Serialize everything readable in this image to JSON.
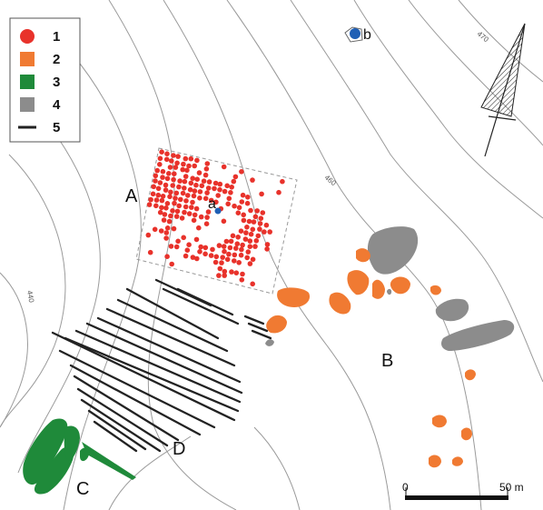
{
  "legend": {
    "items": [
      {
        "key": "1",
        "symbol": "circle",
        "color": "#e8322b"
      },
      {
        "key": "2",
        "symbol": "square",
        "color": "#f07a32"
      },
      {
        "key": "3",
        "symbol": "square",
        "color": "#1f8a3a"
      },
      {
        "key": "4",
        "symbol": "square",
        "color": "#8c8c8c"
      },
      {
        "key": "5",
        "symbol": "line",
        "color": "#222222"
      }
    ]
  },
  "zones": {
    "A": "A",
    "B": "B",
    "C": "C",
    "D": "D"
  },
  "points": {
    "a": "a",
    "b": "b"
  },
  "contours": {
    "c440": "440",
    "c460": "460",
    "c470": "470"
  },
  "scale": {
    "start": "0",
    "end": "50 m"
  },
  "colors": {
    "red": "#e8322b",
    "orange": "#f07a32",
    "green": "#1f8a3a",
    "gray": "#8c8c8c",
    "blue": "#1f5fb5",
    "line": "#222222"
  },
  "north_arrow": {
    "icon": "north-arrow-icon"
  }
}
